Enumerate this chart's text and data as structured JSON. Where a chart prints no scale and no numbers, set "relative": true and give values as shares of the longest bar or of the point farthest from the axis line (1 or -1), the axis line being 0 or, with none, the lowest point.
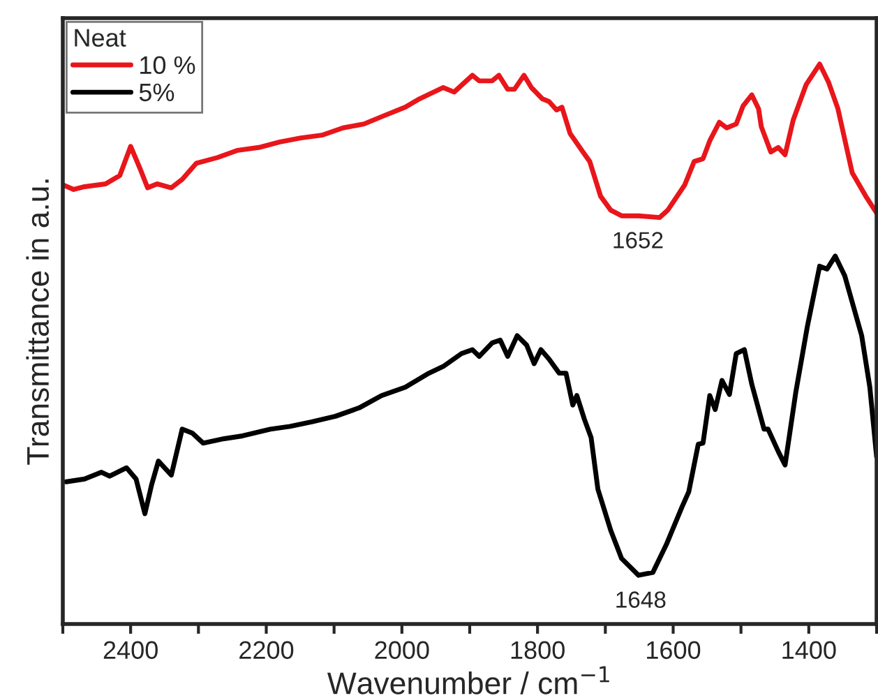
{
  "chart_data": {
    "type": "line",
    "relative": true,
    "xlabel": "Wavenumber / cm$^{−1}$",
    "ylabel": "Transmittance in a.u.",
    "legend_title": "Neat",
    "legend": "top left",
    "grid": false,
    "tick_labels": "x",
    "xlim": [
      2500,
      1300
    ],
    "xticks": [
      {
        "value": 2500,
        "label": null
      },
      2400,
      {
        "value": 2300,
        "label": null
      },
      2200,
      {
        "value": 2100,
        "label": null
      },
      2000,
      {
        "value": 1900,
        "label": null
      },
      1800,
      {
        "value": 1700,
        "label": null
      },
      1600,
      {
        "value": 1500,
        "label": null
      },
      1400,
      {
        "value": 1300,
        "label": null
      }
    ],
    "annotations": [
      {
        "text": "1652",
        "x": 1652,
        "y": 0.729
      },
      {
        "text": "1648",
        "x": 1648,
        "y": 0.087
      }
    ],
    "series": [
      {
        "name": "10 %",
        "color": "#e8161b",
        "x": [
          2499,
          2484,
          2468,
          2437,
          2416,
          2400,
          2386,
          2375,
          2361,
          2340,
          2324,
          2303,
          2272,
          2242,
          2211,
          2180,
          2149,
          2118,
          2087,
          2056,
          2026,
          1995,
          1974,
          1939,
          1923,
          1896,
          1886,
          1867,
          1857,
          1844,
          1834,
          1820,
          1809,
          1793,
          1783,
          1772,
          1764,
          1752,
          1733,
          1723,
          1707,
          1692,
          1676,
          1651,
          1620,
          1608,
          1583,
          1569,
          1556,
          1546,
          1532,
          1521,
          1507,
          1497,
          1484,
          1474,
          1470,
          1456,
          1445,
          1435,
          1423,
          1404,
          1384,
          1371,
          1357,
          1336,
          1316,
          1300
        ],
        "values": [
          0.784,
          0.776,
          0.781,
          0.786,
          0.801,
          0.853,
          0.813,
          0.779,
          0.786,
          0.779,
          0.794,
          0.823,
          0.833,
          0.846,
          0.851,
          0.861,
          0.868,
          0.873,
          0.886,
          0.893,
          0.908,
          0.923,
          0.938,
          0.958,
          0.95,
          0.98,
          0.97,
          0.97,
          0.98,
          0.955,
          0.955,
          0.98,
          0.958,
          0.938,
          0.933,
          0.918,
          0.923,
          0.876,
          0.843,
          0.826,
          0.764,
          0.739,
          0.729,
          0.729,
          0.726,
          0.739,
          0.784,
          0.826,
          0.831,
          0.863,
          0.896,
          0.886,
          0.893,
          0.925,
          0.945,
          0.92,
          0.888,
          0.843,
          0.851,
          0.838,
          0.9,
          0.963,
          1.0,
          0.968,
          0.92,
          0.806,
          0.764,
          0.734
        ]
      },
      {
        "name": "5%",
        "color": "#000000",
        "x": [
          2495,
          2468,
          2443,
          2431,
          2406,
          2392,
          2379,
          2369,
          2359,
          2340,
          2324,
          2309,
          2293,
          2262,
          2235,
          2194,
          2165,
          2133,
          2098,
          2063,
          2030,
          1995,
          1960,
          1939,
          1912,
          1896,
          1886,
          1867,
          1855,
          1844,
          1830,
          1816,
          1805,
          1795,
          1783,
          1768,
          1758,
          1748,
          1742,
          1731,
          1721,
          1711,
          1692,
          1676,
          1651,
          1630,
          1610,
          1587,
          1577,
          1563,
          1556,
          1546,
          1538,
          1528,
          1517,
          1507,
          1495,
          1484,
          1466,
          1460,
          1445,
          1435,
          1419,
          1402,
          1384,
          1373,
          1361,
          1347,
          1322,
          1310,
          1300
        ],
        "values": [
          0.254,
          0.259,
          0.271,
          0.264,
          0.279,
          0.259,
          0.197,
          0.249,
          0.291,
          0.266,
          0.348,
          0.341,
          0.323,
          0.331,
          0.336,
          0.348,
          0.353,
          0.361,
          0.371,
          0.386,
          0.408,
          0.423,
          0.448,
          0.46,
          0.483,
          0.49,
          0.478,
          0.502,
          0.507,
          0.478,
          0.515,
          0.498,
          0.465,
          0.49,
          0.473,
          0.448,
          0.448,
          0.391,
          0.408,
          0.366,
          0.333,
          0.241,
          0.167,
          0.117,
          0.087,
          0.092,
          0.142,
          0.209,
          0.236,
          0.321,
          0.323,
          0.408,
          0.383,
          0.435,
          0.41,
          0.483,
          0.49,
          0.428,
          0.348,
          0.348,
          0.308,
          0.284,
          0.415,
          0.532,
          0.639,
          0.634,
          0.657,
          0.622,
          0.515,
          0.423,
          0.299
        ]
      }
    ]
  }
}
